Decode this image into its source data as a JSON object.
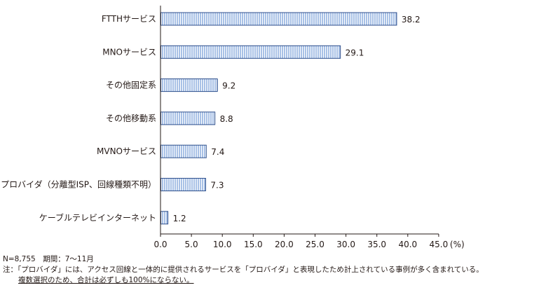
{
  "chart_data": {
    "type": "bar",
    "orientation": "horizontal",
    "categories": [
      "FTTHサービス",
      "MNOサービス",
      "その他固定系",
      "その他移動系",
      "MVNOサービス",
      "プロバイダ（分離型ISP、回線種類不明）",
      "ケーブルテレビインターネット"
    ],
    "values": [
      38.2,
      29.1,
      9.2,
      8.8,
      7.4,
      7.3,
      1.2
    ],
    "value_labels": [
      "38.2",
      "29.1",
      "9.2",
      "8.8",
      "7.4",
      "7.3",
      "1.2"
    ],
    "x_ticks": [
      "0.0",
      "5.0",
      "10.0",
      "15.0",
      "20.0",
      "25.0",
      "30.0",
      "35.0",
      "40.0",
      "45.0"
    ],
    "x_unit": "(%)",
    "xlim": [
      0,
      45
    ],
    "grid": false,
    "bar_fill": "#a8c1e6",
    "bar_stripe": "#ffffff",
    "bar_stroke": "#2c4e8c"
  },
  "notes": {
    "line1": "N=8,755　期間：7～11月",
    "line2": "注：「プロバイダ」には、アクセス回線と一体的に提供されるサービスを「プロバイダ」と表現したため計上されている事例が多く含まれている。",
    "line3": "複数選択のため、合計は必ずしも100%にならない。"
  }
}
